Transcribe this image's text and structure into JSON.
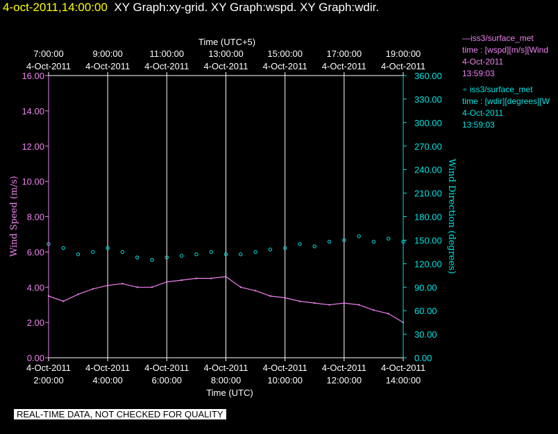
{
  "header": {
    "timestamp": "4-oct-2011,14:00:00",
    "graphs": "XY Graph:xy-grid.  XY Graph:wspd.  XY Graph:wdir."
  },
  "legend": [
    {
      "line1": "—iss3/surface_met",
      "line2": "time : [wspd][m/s][Wind",
      "line3": "4-Oct-2011",
      "line4": "13:59:03",
      "color": "#ee82ee"
    },
    {
      "line1": "∘ iss3/surface_met",
      "line2": "time : [wdir][degrees][W",
      "line3": "4-Oct-2011",
      "line4": "13:59:03",
      "color": "#00e5e5"
    }
  ],
  "banner": "REAL-TIME DATA, NOT CHECKED FOR QUALITY",
  "chart_data": {
    "type": "line",
    "top_axis_title": "Time (UTC+5)",
    "xlabel": "Time (UTC)",
    "ylabel": "Wind Speed (m/s)",
    "y2label": "Wind Direction (degrees)",
    "x_ticks_bottom": [
      {
        "date": "4-Oct-2011",
        "time": "2:00:00"
      },
      {
        "date": "4-Oct-2011",
        "time": "4:00:00"
      },
      {
        "date": "4-Oct-2011",
        "time": "6:00:00"
      },
      {
        "date": "4-Oct-2011",
        "time": "8:00:00"
      },
      {
        "date": "4-Oct-2011",
        "time": "10:00:00"
      },
      {
        "date": "4-Oct-2011",
        "time": "12:00:00"
      },
      {
        "date": "4-Oct-2011",
        "time": "14:00:00"
      }
    ],
    "x_ticks_top": [
      {
        "time": "7:00:00",
        "date": "4-Oct-2011"
      },
      {
        "time": "9:00:00",
        "date": "4-Oct-2011"
      },
      {
        "time": "11:00:00",
        "date": "4-Oct-2011"
      },
      {
        "time": "13:00:00",
        "date": "4-Oct-2011"
      },
      {
        "time": "15:00:00",
        "date": "4-Oct-2011"
      },
      {
        "time": "17:00:00",
        "date": "4-Oct-2011"
      },
      {
        "time": "19:00:00",
        "date": "4-Oct-2011"
      }
    ],
    "xlim_hours_utc": [
      2.0,
      14.0
    ],
    "ylim": [
      0,
      16
    ],
    "y_ticks": [
      "0.00",
      "2.00",
      "4.00",
      "6.00",
      "8.00",
      "10.00",
      "12.00",
      "14.00",
      "16.00"
    ],
    "y2lim": [
      0,
      360
    ],
    "y2_ticks": [
      "0.00",
      "30.00",
      "60.00",
      "90.00",
      "120.00",
      "150.00",
      "180.00",
      "210.00",
      "240.00",
      "270.00",
      "300.00",
      "330.00",
      "360.00"
    ],
    "grid": "vertical",
    "series": [
      {
        "name": "iss3/surface_met",
        "axis": "left",
        "style": "line",
        "color": "#ee82ee",
        "x_hours_utc": [
          2.0,
          2.5,
          3.0,
          3.5,
          4.0,
          4.5,
          5.0,
          5.5,
          6.0,
          6.5,
          7.0,
          7.5,
          8.0,
          8.5,
          9.0,
          9.5,
          10.0,
          10.5,
          11.0,
          11.5,
          12.0,
          12.5,
          13.0,
          13.5,
          14.0
        ],
        "values": [
          3.5,
          3.2,
          3.6,
          3.9,
          4.1,
          4.2,
          4.0,
          4.0,
          4.3,
          4.4,
          4.5,
          4.5,
          4.6,
          4.0,
          3.8,
          3.5,
          3.4,
          3.2,
          3.1,
          3.0,
          3.1,
          3.0,
          2.7,
          2.5,
          2.0
        ]
      },
      {
        "name": "iss3/surface_met",
        "axis": "right",
        "style": "scatter",
        "color": "#00e5e5",
        "x_hours_utc": [
          2.0,
          2.5,
          3.0,
          3.5,
          4.0,
          4.5,
          5.0,
          5.5,
          6.0,
          6.5,
          7.0,
          7.5,
          8.0,
          8.5,
          9.0,
          9.5,
          10.0,
          10.5,
          11.0,
          11.5,
          12.0,
          12.5,
          13.0,
          13.5,
          14.0
        ],
        "values": [
          145,
          140,
          132,
          135,
          140,
          135,
          128,
          125,
          128,
          130,
          132,
          135,
          132,
          132,
          135,
          138,
          140,
          145,
          142,
          148,
          150,
          155,
          148,
          152,
          148
        ]
      }
    ]
  }
}
